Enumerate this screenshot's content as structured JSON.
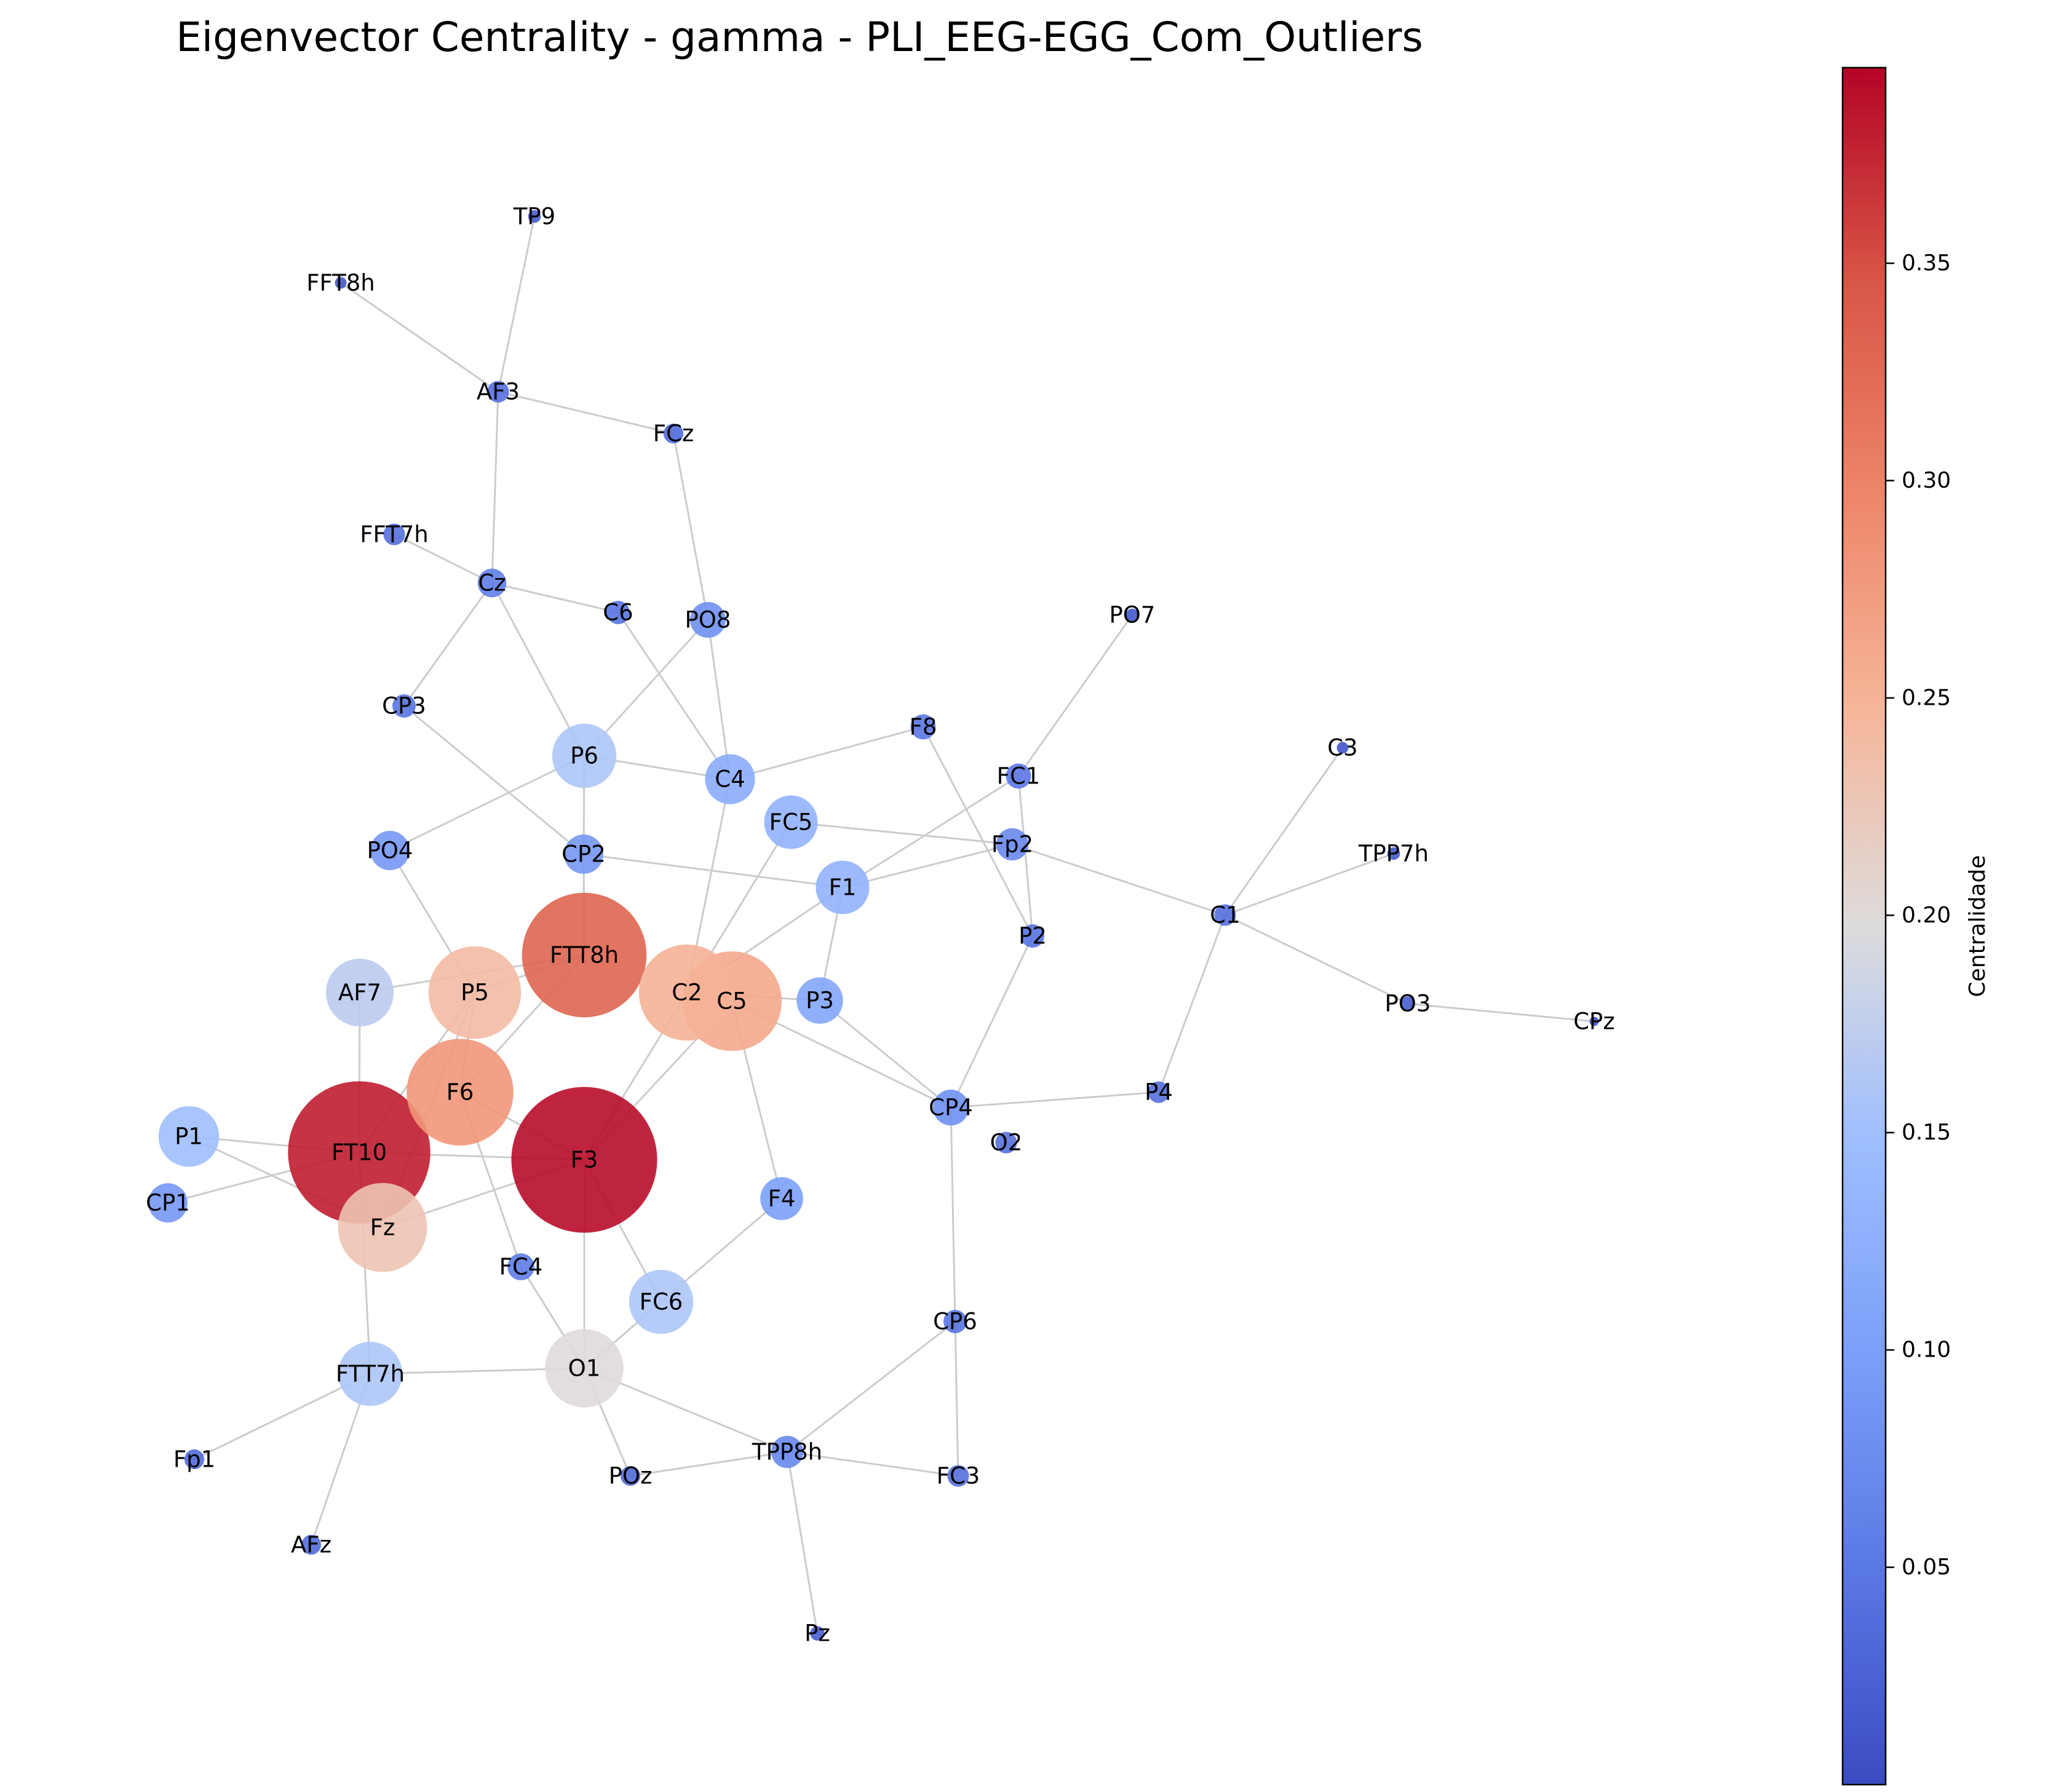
{
  "title": "Eigenvector Centrality - gamma - PLI_EEG-EGG_Com_Outliers",
  "colorbar": {
    "label": "Centralidade",
    "min": 0.0,
    "max": 0.395,
    "colormap": "coolwarm",
    "ticks": [
      {
        "value": 0.05,
        "label": "0.05"
      },
      {
        "value": 0.1,
        "label": "0.10"
      },
      {
        "value": 0.15,
        "label": "0.15"
      },
      {
        "value": 0.2,
        "label": "0.20"
      },
      {
        "value": 0.25,
        "label": "0.25"
      },
      {
        "value": 0.3,
        "label": "0.30"
      },
      {
        "value": 0.35,
        "label": "0.35"
      }
    ]
  },
  "chart_data": {
    "type": "network",
    "metric": "Eigenvector Centrality",
    "nodes": [
      {
        "id": "TP9",
        "c": 0.015
      },
      {
        "id": "FFT8h",
        "c": 0.012
      },
      {
        "id": "AF3",
        "c": 0.04
      },
      {
        "id": "FCz",
        "c": 0.035
      },
      {
        "id": "FFT7h",
        "c": 0.04
      },
      {
        "id": "Cz",
        "c": 0.06
      },
      {
        "id": "C6",
        "c": 0.045
      },
      {
        "id": "PO8",
        "c": 0.08
      },
      {
        "id": "PO7",
        "c": 0.015
      },
      {
        "id": "CP3",
        "c": 0.045
      },
      {
        "id": "F8",
        "c": 0.05
      },
      {
        "id": "FC1",
        "c": 0.05
      },
      {
        "id": "C3",
        "c": 0.012
      },
      {
        "id": "P6",
        "c": 0.16
      },
      {
        "id": "C4",
        "c": 0.12
      },
      {
        "id": "FC5",
        "c": 0.13
      },
      {
        "id": "Fp2",
        "c": 0.07
      },
      {
        "id": "TPP7h",
        "c": 0.015
      },
      {
        "id": "PO4",
        "c": 0.09
      },
      {
        "id": "CP2",
        "c": 0.09
      },
      {
        "id": "F1",
        "c": 0.13
      },
      {
        "id": "C1",
        "c": 0.04
      },
      {
        "id": "P2",
        "c": 0.045
      },
      {
        "id": "FTT8h",
        "c": 0.33
      },
      {
        "id": "AF7",
        "c": 0.17
      },
      {
        "id": "C2",
        "c": 0.25
      },
      {
        "id": "P3",
        "c": 0.11
      },
      {
        "id": "P5",
        "c": 0.24
      },
      {
        "id": "C5",
        "c": 0.26
      },
      {
        "id": "PO3",
        "c": 0.02
      },
      {
        "id": "CPz",
        "c": 0.005
      },
      {
        "id": "F6",
        "c": 0.28
      },
      {
        "id": "P4",
        "c": 0.04
      },
      {
        "id": "CP4",
        "c": 0.08
      },
      {
        "id": "O2",
        "c": 0.04
      },
      {
        "id": "P1",
        "c": 0.15
      },
      {
        "id": "FT10",
        "c": 0.38
      },
      {
        "id": "F3",
        "c": 0.39
      },
      {
        "id": "CP1",
        "c": 0.09
      },
      {
        "id": "Fz",
        "c": 0.23
      },
      {
        "id": "F4",
        "c": 0.1
      },
      {
        "id": "FC4",
        "c": 0.055
      },
      {
        "id": "FC6",
        "c": 0.16
      },
      {
        "id": "CP6",
        "c": 0.045
      },
      {
        "id": "FTT7h",
        "c": 0.16
      },
      {
        "id": "O1",
        "c": 0.2
      },
      {
        "id": "Fp1",
        "c": 0.035
      },
      {
        "id": "TPP8h",
        "c": 0.07
      },
      {
        "id": "POz",
        "c": 0.035
      },
      {
        "id": "FC3",
        "c": 0.04
      },
      {
        "id": "AFz",
        "c": 0.035
      },
      {
        "id": "Pz",
        "c": 0.02
      }
    ],
    "edges": [
      [
        "TP9",
        "AF3"
      ],
      [
        "FFT8h",
        "AF3"
      ],
      [
        "AF3",
        "FCz"
      ],
      [
        "AF3",
        "Cz"
      ],
      [
        "FCz",
        "PO8"
      ],
      [
        "FFT7h",
        "Cz"
      ],
      [
        "Cz",
        "C6"
      ],
      [
        "Cz",
        "CP3"
      ],
      [
        "Cz",
        "P6"
      ],
      [
        "C6",
        "C4"
      ],
      [
        "PO8",
        "P6"
      ],
      [
        "PO8",
        "C4"
      ],
      [
        "PO7",
        "FC1"
      ],
      [
        "C4",
        "F8"
      ],
      [
        "C4",
        "P6"
      ],
      [
        "C4",
        "C2"
      ],
      [
        "F8",
        "P2"
      ],
      [
        "FC1",
        "F1"
      ],
      [
        "FC1",
        "P2"
      ],
      [
        "FC5",
        "Fp2"
      ],
      [
        "FC5",
        "C2"
      ],
      [
        "P6",
        "PO4"
      ],
      [
        "P6",
        "CP2"
      ],
      [
        "CP3",
        "CP2"
      ],
      [
        "CP2",
        "F1"
      ],
      [
        "F1",
        "Fp2"
      ],
      [
        "F1",
        "P3"
      ],
      [
        "F1",
        "C2"
      ],
      [
        "Fp2",
        "C1"
      ],
      [
        "C3",
        "C1"
      ],
      [
        "TPP7h",
        "C1"
      ],
      [
        "C1",
        "PO3"
      ],
      [
        "C1",
        "P4"
      ],
      [
        "PO3",
        "CPz"
      ],
      [
        "PO4",
        "P5"
      ],
      [
        "FTT8h",
        "AF7"
      ],
      [
        "FTT8h",
        "CP2"
      ],
      [
        "FTT8h",
        "P5"
      ],
      [
        "FTT8h",
        "F6"
      ],
      [
        "AF7",
        "FT10"
      ],
      [
        "C2",
        "P3"
      ],
      [
        "C2",
        "F3"
      ],
      [
        "C2",
        "C5"
      ],
      [
        "P3",
        "CP4"
      ],
      [
        "C5",
        "F3"
      ],
      [
        "C5",
        "CP4"
      ],
      [
        "C5",
        "F4"
      ],
      [
        "P5",
        "F6"
      ],
      [
        "P5",
        "FT10"
      ],
      [
        "P5",
        "Fz"
      ],
      [
        "F6",
        "FC4"
      ],
      [
        "F6",
        "F3"
      ],
      [
        "CP4",
        "P4"
      ],
      [
        "CP4",
        "P2"
      ],
      [
        "CP4",
        "CP6"
      ],
      [
        "P1",
        "FT10"
      ],
      [
        "P1",
        "Fz"
      ],
      [
        "CP1",
        "FT10"
      ],
      [
        "FT10",
        "F3"
      ],
      [
        "FT10",
        "FTT7h"
      ],
      [
        "F3",
        "Fz"
      ],
      [
        "F3",
        "O1"
      ],
      [
        "F3",
        "FC6"
      ],
      [
        "FC6",
        "F4"
      ],
      [
        "FC6",
        "O1"
      ],
      [
        "FC4",
        "O1"
      ],
      [
        "CP6",
        "TPP8h"
      ],
      [
        "CP6",
        "FC3"
      ],
      [
        "FTT7h",
        "O1"
      ],
      [
        "FTT7h",
        "Fp1"
      ],
      [
        "FTT7h",
        "AFz"
      ],
      [
        "O1",
        "TPP8h"
      ],
      [
        "O1",
        "POz"
      ],
      [
        "TPP8h",
        "POz"
      ],
      [
        "TPP8h",
        "FC3"
      ],
      [
        "TPP8h",
        "Pz"
      ]
    ]
  }
}
